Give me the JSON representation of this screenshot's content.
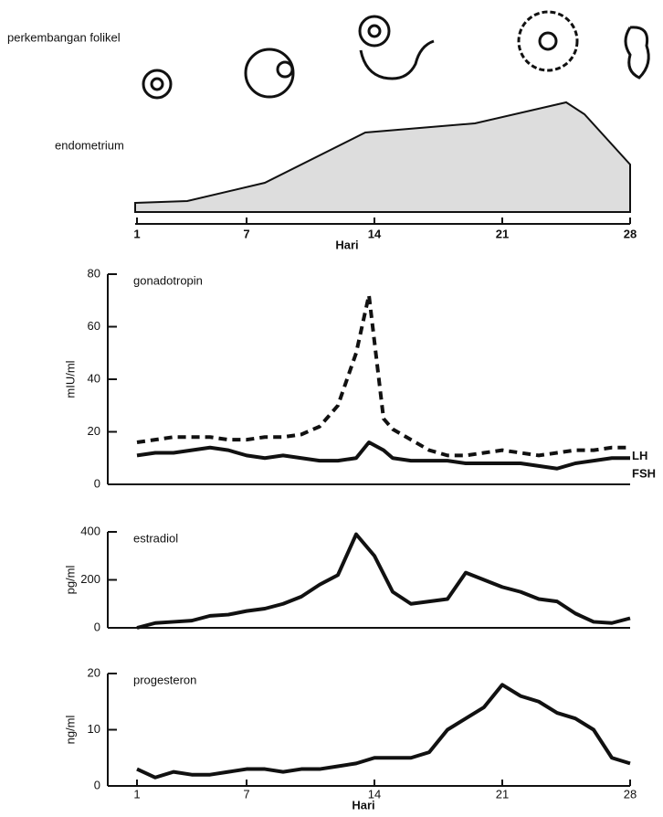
{
  "illustration": {
    "follicle_label": "perkembangan folikel",
    "endometrium_label": "endometrium",
    "day_ticks": [
      1,
      7,
      14,
      21,
      28
    ],
    "day_label": "Hari"
  },
  "chart_data": [
    {
      "type": "line",
      "title": "gonadotropin",
      "y_label": "mIU/ml",
      "xlim": [
        -0.6,
        28
      ],
      "ylim": [
        0,
        80
      ],
      "yticks": [
        0,
        20,
        40,
        60,
        80
      ],
      "x": [
        1,
        2,
        3,
        4,
        5,
        6,
        7,
        8,
        9,
        10,
        11,
        12,
        13,
        13.7,
        14.5,
        15,
        16,
        17,
        18,
        19,
        20,
        21,
        22,
        23,
        24,
        25,
        26,
        27,
        28
      ],
      "series": [
        {
          "name": "LH",
          "color": "#111111",
          "dashed": true,
          "values": [
            16,
            17,
            18,
            18,
            18,
            17,
            17,
            18,
            18,
            19,
            22,
            30,
            50,
            72,
            25,
            21,
            17,
            13,
            11,
            11,
            12,
            13,
            12,
            11,
            12,
            13,
            13,
            14,
            14
          ]
        },
        {
          "name": "FSH",
          "color": "#111111",
          "dashed": false,
          "values": [
            11,
            12,
            12,
            13,
            14,
            13,
            11,
            10,
            11,
            10,
            9,
            9,
            10,
            16,
            13,
            10,
            9,
            9,
            9,
            8,
            8,
            8,
            8,
            7,
            6,
            8,
            9,
            10,
            10
          ]
        }
      ]
    },
    {
      "type": "line",
      "title": "estradiol",
      "y_label": "pg/ml",
      "xlim": [
        -0.6,
        28
      ],
      "ylim": [
        0,
        400
      ],
      "yticks": [
        0,
        200,
        400
      ],
      "x": [
        1,
        2,
        3,
        4,
        5,
        6,
        7,
        8,
        9,
        10,
        11,
        12,
        13,
        14,
        15,
        16,
        17,
        18,
        19,
        20,
        21,
        22,
        23,
        24,
        25,
        26,
        27,
        28
      ],
      "series": [
        {
          "name": null,
          "color": "#111111",
          "dashed": false,
          "values": [
            0,
            20,
            25,
            30,
            50,
            55,
            70,
            80,
            100,
            130,
            180,
            220,
            390,
            300,
            150,
            100,
            110,
            120,
            230,
            200,
            170,
            150,
            120,
            110,
            60,
            25,
            20,
            40
          ]
        }
      ]
    },
    {
      "type": "line",
      "title": "progesteron",
      "y_label": "ng/ml",
      "x_label": "Hari",
      "xlim": [
        -0.6,
        28
      ],
      "ylim": [
        0,
        20
      ],
      "yticks": [
        0,
        10,
        20
      ],
      "xticks": [
        1,
        7,
        14,
        21,
        28
      ],
      "x": [
        1,
        2,
        3,
        4,
        5,
        6,
        7,
        8,
        9,
        10,
        11,
        12,
        13,
        14,
        15,
        16,
        17,
        18,
        19,
        20,
        21,
        22,
        23,
        24,
        25,
        26,
        27,
        28
      ],
      "series": [
        {
          "name": null,
          "color": "#111111",
          "dashed": false,
          "values": [
            3,
            1.5,
            2.5,
            2,
            2,
            2.5,
            3,
            3,
            2.5,
            3,
            3,
            3.5,
            4,
            5,
            5,
            5,
            6,
            10,
            12,
            14,
            18,
            16,
            15,
            13,
            12,
            10,
            5,
            4
          ]
        }
      ]
    }
  ]
}
